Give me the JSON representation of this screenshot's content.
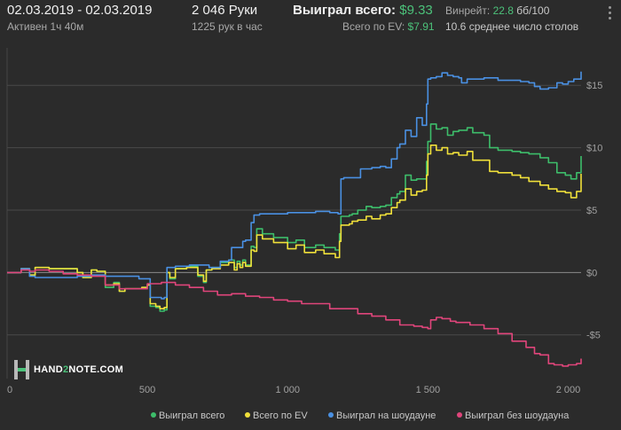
{
  "header": {
    "date_range": "02.03.2019 - 02.03.2019",
    "active_time": "Активен 1ч 40м",
    "hands": "2 046 Руки",
    "hands_per_hour": "1225 рук в час",
    "won_label": "Выиграл всего:",
    "won_value": "$9.33",
    "ev_label": "Всего по EV:",
    "ev_value": "$7.91",
    "vpip_label": "Винрейт:",
    "vpip_value": "22.8",
    "vpip_unit": "бб/100",
    "tables_text": "10.6 среднее число столов"
  },
  "logo": {
    "part1": "HAND",
    "part2": "2",
    "part3": "NOTE.COM"
  },
  "colors": {
    "background": "#2b2b2b",
    "grid": "#4a4a4a",
    "zero_line": "#8a8a8a",
    "won_total": "#3dbd6a",
    "ev_total": "#f0e03a",
    "showdown": "#4a90e2",
    "non_showdown": "#e0457b"
  },
  "chart_data": {
    "type": "line",
    "xlim": [
      0,
      2046
    ],
    "ylim": [
      -8.5,
      18
    ],
    "x_ticks": [
      0,
      500,
      1000,
      1500,
      2000
    ],
    "x_tick_labels": [
      "0",
      "500",
      "1 000",
      "1 500",
      "2 000"
    ],
    "y_ticks": [
      -5,
      0,
      5,
      10,
      15
    ],
    "y_tick_labels": [
      "-$5",
      "$0",
      "$5",
      "$10",
      "$15"
    ],
    "grid": "horizontal",
    "legend_position": "bottom-right",
    "series": [
      {
        "name": "Выиграл всего",
        "color": "#3dbd6a",
        "points": [
          [
            0,
            0
          ],
          [
            50,
            0.3
          ],
          [
            80,
            -0.2
          ],
          [
            100,
            0.4
          ],
          [
            150,
            0.3
          ],
          [
            250,
            0
          ],
          [
            270,
            -0.4
          ],
          [
            300,
            0.2
          ],
          [
            320,
            0.1
          ],
          [
            350,
            -1.2
          ],
          [
            380,
            -0.8
          ],
          [
            400,
            -1.5
          ],
          [
            420,
            -1.3
          ],
          [
            450,
            -1.3
          ],
          [
            480,
            -1.2
          ],
          [
            500,
            -1.0
          ],
          [
            510,
            -2.7
          ],
          [
            530,
            -2.8
          ],
          [
            545,
            -3.1
          ],
          [
            560,
            -3.0
          ],
          [
            570,
            0
          ],
          [
            580,
            -0.5
          ],
          [
            600,
            0.3
          ],
          [
            640,
            0.5
          ],
          [
            680,
            -0.3
          ],
          [
            700,
            -0.8
          ],
          [
            710,
            0.2
          ],
          [
            730,
            0.4
          ],
          [
            760,
            0.8
          ],
          [
            790,
            1
          ],
          [
            810,
            0.4
          ],
          [
            820,
            0.9
          ],
          [
            830,
            0.6
          ],
          [
            840,
            1
          ],
          [
            850,
            0.6
          ],
          [
            870,
            2.1
          ],
          [
            880,
            2.0
          ],
          [
            890,
            3.5
          ],
          [
            910,
            3.1
          ],
          [
            950,
            2.8
          ],
          [
            1000,
            2.4
          ],
          [
            1030,
            2.6
          ],
          [
            1060,
            2.0
          ],
          [
            1100,
            2.2
          ],
          [
            1130,
            2.0
          ],
          [
            1170,
            1.8
          ],
          [
            1185,
            3.1
          ],
          [
            1190,
            4.5
          ],
          [
            1220,
            4.6
          ],
          [
            1230,
            4.7
          ],
          [
            1250,
            5.0
          ],
          [
            1280,
            5.3
          ],
          [
            1300,
            5.2
          ],
          [
            1330,
            5.3
          ],
          [
            1350,
            5.4
          ],
          [
            1370,
            6.0
          ],
          [
            1390,
            6.3
          ],
          [
            1400,
            6.5
          ],
          [
            1420,
            7.8
          ],
          [
            1440,
            7.4
          ],
          [
            1460,
            7.5
          ],
          [
            1480,
            7.5
          ],
          [
            1495,
            8.9
          ],
          [
            1500,
            10.5
          ],
          [
            1510,
            11.9
          ],
          [
            1530,
            11.5
          ],
          [
            1550,
            11.6
          ],
          [
            1570,
            11.0
          ],
          [
            1590,
            11.3
          ],
          [
            1610,
            11.4
          ],
          [
            1640,
            11.6
          ],
          [
            1660,
            11.2
          ],
          [
            1700,
            11.0
          ],
          [
            1720,
            10.0
          ],
          [
            1750,
            9.8
          ],
          [
            1800,
            9.7
          ],
          [
            1830,
            9.6
          ],
          [
            1860,
            9.5
          ],
          [
            1900,
            9.2
          ],
          [
            1930,
            8.8
          ],
          [
            1960,
            8.0
          ],
          [
            1990,
            7.8
          ],
          [
            2010,
            7.5
          ],
          [
            2030,
            8.0
          ],
          [
            2046,
            9.33
          ]
        ]
      },
      {
        "name": "Всего по EV",
        "color": "#f0e03a",
        "points": [
          [
            0,
            0
          ],
          [
            50,
            0.3
          ],
          [
            80,
            -0.2
          ],
          [
            100,
            0.4
          ],
          [
            150,
            0.3
          ],
          [
            250,
            0
          ],
          [
            270,
            -0.4
          ],
          [
            300,
            0.2
          ],
          [
            320,
            0.1
          ],
          [
            350,
            -1.0
          ],
          [
            380,
            -0.9
          ],
          [
            400,
            -1.5
          ],
          [
            420,
            -1.3
          ],
          [
            450,
            -1.3
          ],
          [
            480,
            -1.2
          ],
          [
            500,
            -1.0
          ],
          [
            510,
            -2.5
          ],
          [
            530,
            -2.7
          ],
          [
            545,
            -2.9
          ],
          [
            560,
            -2.8
          ],
          [
            570,
            0
          ],
          [
            580,
            -0.4
          ],
          [
            600,
            0.3
          ],
          [
            640,
            0.4
          ],
          [
            680,
            -0.2
          ],
          [
            700,
            -0.7
          ],
          [
            710,
            0.2
          ],
          [
            730,
            0.3
          ],
          [
            760,
            0.6
          ],
          [
            790,
            0.8
          ],
          [
            810,
            0.2
          ],
          [
            820,
            0.7
          ],
          [
            830,
            0.4
          ],
          [
            840,
            0.8
          ],
          [
            850,
            0.5
          ],
          [
            870,
            1.8
          ],
          [
            880,
            1.7
          ],
          [
            890,
            3.0
          ],
          [
            910,
            2.7
          ],
          [
            950,
            2.4
          ],
          [
            1000,
            1.9
          ],
          [
            1030,
            2.2
          ],
          [
            1060,
            1.6
          ],
          [
            1100,
            1.8
          ],
          [
            1130,
            1.5
          ],
          [
            1170,
            1.2
          ],
          [
            1185,
            2.5
          ],
          [
            1190,
            3.8
          ],
          [
            1220,
            3.9
          ],
          [
            1230,
            4.1
          ],
          [
            1250,
            4.2
          ],
          [
            1280,
            4.5
          ],
          [
            1300,
            4.3
          ],
          [
            1330,
            4.6
          ],
          [
            1350,
            4.7
          ],
          [
            1370,
            5.2
          ],
          [
            1390,
            5.6
          ],
          [
            1400,
            5.8
          ],
          [
            1420,
            6.7
          ],
          [
            1440,
            6.2
          ],
          [
            1460,
            6.5
          ],
          [
            1480,
            6.6
          ],
          [
            1495,
            7.8
          ],
          [
            1500,
            9.5
          ],
          [
            1510,
            10.2
          ],
          [
            1530,
            9.8
          ],
          [
            1550,
            10.0
          ],
          [
            1570,
            9.5
          ],
          [
            1590,
            9.6
          ],
          [
            1610,
            9.4
          ],
          [
            1640,
            9.7
          ],
          [
            1660,
            9.0
          ],
          [
            1700,
            9.0
          ],
          [
            1720,
            8.1
          ],
          [
            1750,
            8.0
          ],
          [
            1800,
            7.8
          ],
          [
            1830,
            7.6
          ],
          [
            1860,
            7.3
          ],
          [
            1900,
            7.0
          ],
          [
            1930,
            6.7
          ],
          [
            1960,
            6.5
          ],
          [
            1990,
            6.4
          ],
          [
            2010,
            6.0
          ],
          [
            2030,
            6.5
          ],
          [
            2046,
            7.91
          ]
        ]
      },
      {
        "name": "Выиграл на шоудауне",
        "color": "#4a90e2",
        "points": [
          [
            0,
            0
          ],
          [
            50,
            0.3
          ],
          [
            80,
            -0.3
          ],
          [
            100,
            -0.4
          ],
          [
            150,
            -0.4
          ],
          [
            250,
            -0.3
          ],
          [
            300,
            -0.2
          ],
          [
            350,
            -0.3
          ],
          [
            400,
            -0.3
          ],
          [
            450,
            -0.3
          ],
          [
            470,
            -0.5
          ],
          [
            500,
            -0.5
          ],
          [
            510,
            -2.0
          ],
          [
            550,
            -2.1
          ],
          [
            560,
            -2.0
          ],
          [
            570,
            0.4
          ],
          [
            600,
            0.5
          ],
          [
            650,
            0.6
          ],
          [
            700,
            0.6
          ],
          [
            720,
            0.4
          ],
          [
            760,
            0.9
          ],
          [
            790,
            1.0
          ],
          [
            800,
            2.0
          ],
          [
            840,
            2.5
          ],
          [
            850,
            2.6
          ],
          [
            870,
            4.0
          ],
          [
            880,
            4.6
          ],
          [
            900,
            4.7
          ],
          [
            950,
            4.7
          ],
          [
            1000,
            4.8
          ],
          [
            1050,
            4.8
          ],
          [
            1100,
            4.9
          ],
          [
            1150,
            4.8
          ],
          [
            1180,
            4.7
          ],
          [
            1190,
            7.5
          ],
          [
            1200,
            7.6
          ],
          [
            1240,
            7.6
          ],
          [
            1260,
            8.3
          ],
          [
            1300,
            8.4
          ],
          [
            1330,
            8.5
          ],
          [
            1350,
            8.4
          ],
          [
            1370,
            9.1
          ],
          [
            1390,
            10.0
          ],
          [
            1400,
            10.3
          ],
          [
            1420,
            11.4
          ],
          [
            1440,
            10.9
          ],
          [
            1460,
            12.4
          ],
          [
            1480,
            11.8
          ],
          [
            1495,
            13.5
          ],
          [
            1500,
            15.5
          ],
          [
            1510,
            15.6
          ],
          [
            1530,
            15.7
          ],
          [
            1550,
            16.0
          ],
          [
            1570,
            15.8
          ],
          [
            1590,
            15.7
          ],
          [
            1610,
            15.6
          ],
          [
            1620,
            15.2
          ],
          [
            1640,
            15.5
          ],
          [
            1660,
            15.5
          ],
          [
            1700,
            15.6
          ],
          [
            1720,
            15.6
          ],
          [
            1750,
            15.4
          ],
          [
            1800,
            15.4
          ],
          [
            1830,
            15.3
          ],
          [
            1860,
            15.2
          ],
          [
            1880,
            14.9
          ],
          [
            1900,
            14.7
          ],
          [
            1930,
            14.8
          ],
          [
            1960,
            15.2
          ],
          [
            1980,
            15.1
          ],
          [
            2000,
            15.3
          ],
          [
            2020,
            15.5
          ],
          [
            2046,
            16.1
          ]
        ]
      },
      {
        "name": "Выиграл без шоудауна",
        "color": "#e0457b",
        "points": [
          [
            0,
            0
          ],
          [
            50,
            0.2
          ],
          [
            80,
            0.1
          ],
          [
            100,
            0.2
          ],
          [
            150,
            0.1
          ],
          [
            200,
            -0.1
          ],
          [
            250,
            -0.2
          ],
          [
            300,
            -0.3
          ],
          [
            350,
            -1.0
          ],
          [
            400,
            -1.3
          ],
          [
            450,
            -1.3
          ],
          [
            500,
            -0.9
          ],
          [
            550,
            -0.8
          ],
          [
            600,
            -1.0
          ],
          [
            650,
            -1.2
          ],
          [
            700,
            -1.5
          ],
          [
            750,
            -1.8
          ],
          [
            800,
            -1.7
          ],
          [
            850,
            -1.9
          ],
          [
            900,
            -2.0
          ],
          [
            950,
            -2.2
          ],
          [
            1000,
            -2.3
          ],
          [
            1050,
            -2.5
          ],
          [
            1100,
            -2.5
          ],
          [
            1150,
            -2.9
          ],
          [
            1200,
            -2.9
          ],
          [
            1250,
            -3.3
          ],
          [
            1300,
            -3.5
          ],
          [
            1350,
            -3.8
          ],
          [
            1400,
            -4.2
          ],
          [
            1450,
            -4.3
          ],
          [
            1480,
            -4.4
          ],
          [
            1500,
            -4.5
          ],
          [
            1510,
            -3.8
          ],
          [
            1530,
            -3.6
          ],
          [
            1550,
            -3.7
          ],
          [
            1580,
            -3.9
          ],
          [
            1600,
            -4.0
          ],
          [
            1650,
            -4.2
          ],
          [
            1700,
            -4.5
          ],
          [
            1750,
            -4.9
          ],
          [
            1800,
            -5.5
          ],
          [
            1850,
            -6.0
          ],
          [
            1880,
            -6.5
          ],
          [
            1900,
            -6.6
          ],
          [
            1930,
            -7.3
          ],
          [
            1950,
            -7.4
          ],
          [
            1980,
            -7.5
          ],
          [
            2000,
            -7.4
          ],
          [
            2030,
            -7.3
          ],
          [
            2046,
            -6.9
          ]
        ]
      }
    ]
  }
}
